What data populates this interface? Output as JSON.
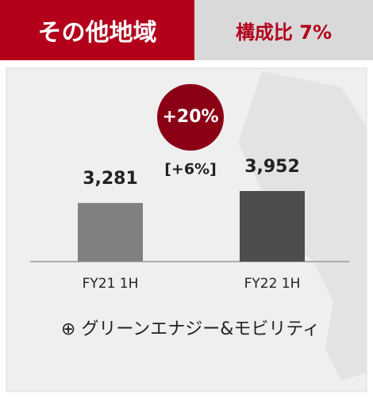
{
  "header": {
    "title": "その他地域",
    "share": "構成比 7%"
  },
  "chart_data": {
    "type": "bar",
    "categories": [
      "FY21 1H",
      "FY22 1H"
    ],
    "values": [
      3281,
      3952
    ],
    "value_labels": [
      "3,281",
      "3,952"
    ],
    "colors": [
      "#808080",
      "#4d4d4d"
    ],
    "growth": "+20%",
    "growth_sub": "[+6%]",
    "footnote": "⊕ グリーンエナジー&モビリティ"
  }
}
